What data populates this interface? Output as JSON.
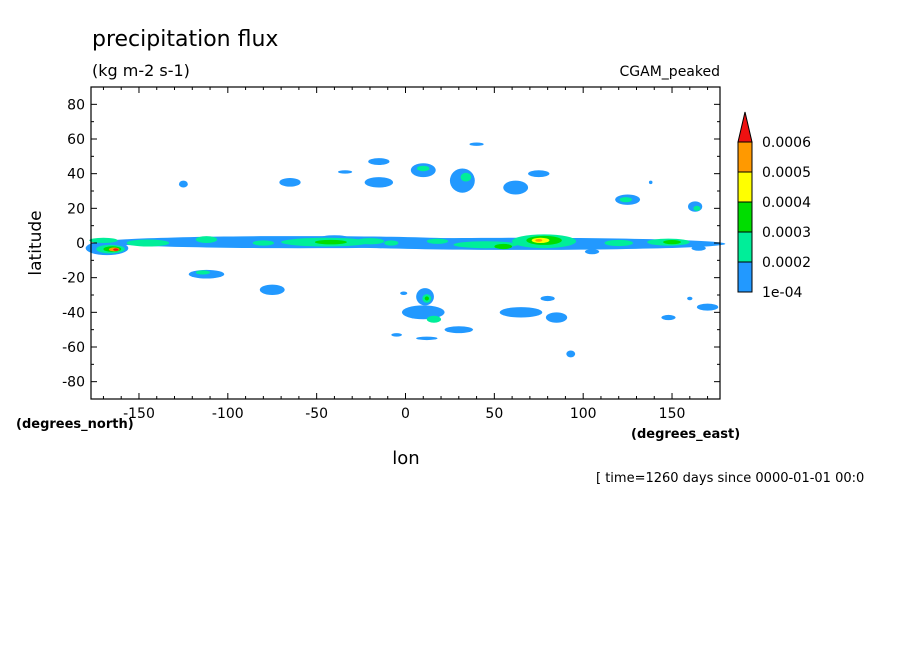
{
  "chart_data": {
    "type": "heatmap",
    "title": "precipitation flux",
    "units": "(kg m-2 s-1)",
    "model": "CGAM_peaked",
    "xlabel": "lon",
    "ylabel": "latitude",
    "x_units": "(degrees_east)",
    "y_units": "(degrees_north)",
    "time_stamp": "[ time=1260 days since 0000-01-01 00:0",
    "xlim": [
      -177,
      177
    ],
    "ylim": [
      -90,
      90
    ],
    "x_ticks": [
      -150,
      -100,
      -50,
      0,
      50,
      100,
      150
    ],
    "x_tick_labels": [
      "-150",
      "-100",
      "-50",
      "0",
      "50",
      "100",
      "150"
    ],
    "y_ticks": [
      80,
      60,
      40,
      20,
      0,
      -20,
      -40,
      -60,
      -80
    ],
    "y_tick_labels": [
      "80",
      "60",
      "40",
      "20",
      "0",
      "-20",
      "-40",
      "-60",
      "-80"
    ],
    "colorbar": {
      "levels": [
        "0.0006",
        "0.0005",
        "0.0004",
        "0.0003",
        "0.0002",
        "1e-04"
      ],
      "colors": [
        "#ff9900",
        "#ffff00",
        "#00dd00",
        "#00ee99",
        "#2299ff"
      ],
      "over_color": "#ee1111"
    },
    "level_colors": [
      "#2299ff",
      "#00ee99",
      "#00dd00",
      "#ffff00",
      "#ff9900",
      "#ee1111"
    ],
    "blobs": [
      {
        "lon": -60,
        "lat": 0.5,
        "rlon": 110,
        "rlat": 3.5,
        "level": 0
      },
      {
        "lon": 65,
        "lat": -0.5,
        "rlon": 115,
        "rlat": 3.5,
        "level": 0
      },
      {
        "lon": -168,
        "lat": -3,
        "rlon": 12,
        "rlat": 4,
        "level": 0
      },
      {
        "lon": -166,
        "lat": -3.5,
        "rlon": 8,
        "rlat": 2.5,
        "level": 1
      },
      {
        "lon": -165,
        "lat": -3.5,
        "rlon": 5,
        "rlat": 1.6,
        "level": 2
      },
      {
        "lon": -164,
        "lat": -3.7,
        "rlon": 3,
        "rlat": 1.1,
        "level": 4
      },
      {
        "lon": -163,
        "lat": -3.8,
        "rlon": 1.5,
        "rlat": 0.7,
        "level": 5
      },
      {
        "lon": -145,
        "lat": 0,
        "rlon": 12,
        "rlat": 2,
        "level": 1
      },
      {
        "lon": -112,
        "lat": 2,
        "rlon": 6,
        "rlat": 2,
        "level": 1
      },
      {
        "lon": -80,
        "lat": 0,
        "rlon": 6,
        "rlat": 1.5,
        "level": 1
      },
      {
        "lon": -45,
        "lat": 0.5,
        "rlon": 25,
        "rlat": 2.5,
        "level": 1
      },
      {
        "lon": -42,
        "lat": 0.5,
        "rlon": 9,
        "rlat": 1.3,
        "level": 2
      },
      {
        "lon": -20,
        "lat": 1,
        "rlon": 8,
        "rlat": 1.8,
        "level": 1
      },
      {
        "lon": -8,
        "lat": 0,
        "rlon": 4,
        "rlat": 1.5,
        "level": 1
      },
      {
        "lon": 18,
        "lat": 1,
        "rlon": 6,
        "rlat": 1.5,
        "level": 1
      },
      {
        "lon": 45,
        "lat": -1,
        "rlon": 18,
        "rlat": 2,
        "level": 1
      },
      {
        "lon": 55,
        "lat": -2,
        "rlon": 5,
        "rlat": 1.5,
        "level": 2
      },
      {
        "lon": 78,
        "lat": 1,
        "rlon": 18,
        "rlat": 4,
        "level": 1
      },
      {
        "lon": 78,
        "lat": 1.5,
        "rlon": 10,
        "rlat": 2.6,
        "level": 2
      },
      {
        "lon": 76,
        "lat": 1.5,
        "rlon": 5,
        "rlat": 1.5,
        "level": 3
      },
      {
        "lon": 75,
        "lat": 1.5,
        "rlon": 2,
        "rlat": 0.8,
        "level": 4
      },
      {
        "lon": 120,
        "lat": 0,
        "rlon": 8,
        "rlat": 1.8,
        "level": 1
      },
      {
        "lon": 148,
        "lat": 0.5,
        "rlon": 12,
        "rlat": 2,
        "level": 1
      },
      {
        "lon": 150,
        "lat": 0.5,
        "rlon": 5,
        "rlat": 1.2,
        "level": 2
      },
      {
        "lon": -170,
        "lat": 1.5,
        "rlon": 8,
        "rlat": 1.5,
        "level": 1
      },
      {
        "lon": 10,
        "lat": -40,
        "rlon": 12,
        "rlat": 4,
        "level": 0
      },
      {
        "lon": 11,
        "lat": -31,
        "rlon": 5,
        "rlat": 5,
        "level": 0
      },
      {
        "lon": 12,
        "lat": -32,
        "rlon": 2.5,
        "rlat": 2.5,
        "level": 1
      },
      {
        "lon": 12,
        "lat": -32,
        "rlon": 1.2,
        "rlat": 1.2,
        "level": 2
      },
      {
        "lon": 16,
        "lat": -44,
        "rlon": 4,
        "rlat": 2,
        "level": 1
      },
      {
        "lon": 10,
        "lat": 42,
        "rlon": 7,
        "rlat": 4,
        "level": 0
      },
      {
        "lon": 10,
        "lat": 43,
        "rlon": 3.5,
        "rlat": 1.6,
        "level": 1
      },
      {
        "lon": 32,
        "lat": 36,
        "rlon": 7,
        "rlat": 7,
        "level": 0
      },
      {
        "lon": 34,
        "lat": 38,
        "rlon": 3,
        "rlat": 2.5,
        "level": 1
      },
      {
        "lon": -15,
        "lat": 47,
        "rlon": 6,
        "rlat": 2,
        "level": 0
      },
      {
        "lon": -15,
        "lat": 35,
        "rlon": 8,
        "rlat": 3,
        "level": 0
      },
      {
        "lon": -34,
        "lat": 41,
        "rlon": 4,
        "rlat": 1,
        "level": 0
      },
      {
        "lon": -65,
        "lat": 35,
        "rlon": 6,
        "rlat": 2.5,
        "level": 0
      },
      {
        "lon": -125,
        "lat": 34,
        "rlon": 2.5,
        "rlat": 2,
        "level": 0
      },
      {
        "lon": 62,
        "lat": 32,
        "rlon": 7,
        "rlat": 4,
        "level": 0
      },
      {
        "lon": 75,
        "lat": 40,
        "rlon": 6,
        "rlat": 2,
        "level": 0
      },
      {
        "lon": 40,
        "lat": 57,
        "rlon": 4,
        "rlat": 1,
        "level": 0
      },
      {
        "lon": 125,
        "lat": 25,
        "rlon": 7,
        "rlat": 3,
        "level": 0
      },
      {
        "lon": 124,
        "lat": 25,
        "rlon": 3.5,
        "rlat": 1.5,
        "level": 1
      },
      {
        "lon": 163,
        "lat": 21,
        "rlon": 4,
        "rlat": 3,
        "level": 0
      },
      {
        "lon": 164,
        "lat": 20,
        "rlon": 2,
        "rlat": 1.5,
        "level": 1
      },
      {
        "lon": 138,
        "lat": 35,
        "rlon": 1,
        "rlat": 1,
        "level": 0
      },
      {
        "lon": -112,
        "lat": -18,
        "rlon": 10,
        "rlat": 2.5,
        "level": 0
      },
      {
        "lon": -114,
        "lat": -17,
        "rlon": 4,
        "rlat": 1.2,
        "level": 1
      },
      {
        "lon": -75,
        "lat": -27,
        "rlon": 7,
        "rlat": 3,
        "level": 0
      },
      {
        "lon": 30,
        "lat": -50,
        "rlon": 8,
        "rlat": 2,
        "level": 0
      },
      {
        "lon": 65,
        "lat": -40,
        "rlon": 12,
        "rlat": 3,
        "level": 0
      },
      {
        "lon": 85,
        "lat": -43,
        "rlon": 6,
        "rlat": 3,
        "level": 0
      },
      {
        "lon": 80,
        "lat": -32,
        "rlon": 4,
        "rlat": 1.5,
        "level": 0
      },
      {
        "lon": 148,
        "lat": -43,
        "rlon": 4,
        "rlat": 1.5,
        "level": 0
      },
      {
        "lon": 170,
        "lat": -37,
        "rlon": 6,
        "rlat": 2,
        "level": 0
      },
      {
        "lon": 93,
        "lat": -64,
        "rlon": 2.5,
        "rlat": 2,
        "level": 0
      },
      {
        "lon": 12,
        "lat": -55,
        "rlon": 6,
        "rlat": 1,
        "level": 0
      },
      {
        "lon": -5,
        "lat": -53,
        "rlon": 3,
        "rlat": 1,
        "level": 0
      },
      {
        "lon": -1,
        "lat": -29,
        "rlon": 2,
        "rlat": 1,
        "level": 0
      },
      {
        "lon": 160,
        "lat": -32,
        "rlon": 1.5,
        "rlat": 1,
        "level": 0
      },
      {
        "lon": 105,
        "lat": -5,
        "rlon": 4,
        "rlat": 1.5,
        "level": 0
      },
      {
        "lon": 165,
        "lat": -3,
        "rlon": 4,
        "rlat": 1.5,
        "level": 0
      },
      {
        "lon": -40,
        "lat": 3,
        "rlon": 8,
        "rlat": 1.5,
        "level": 0
      }
    ]
  }
}
